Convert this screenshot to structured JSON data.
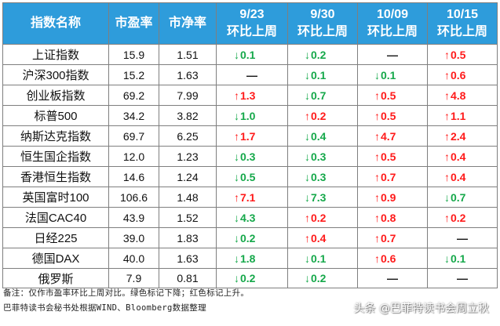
{
  "header": {
    "name": "指数名称",
    "pe": "市盈率",
    "pb": "市净率",
    "periods": [
      {
        "date": "9/23",
        "label": "环比上周"
      },
      {
        "date": "9/30",
        "label": "环比上周"
      },
      {
        "date": "10/09",
        "label": "环比上周"
      },
      {
        "date": "10/15",
        "label": "环比上周"
      }
    ]
  },
  "rows": [
    {
      "name": "上证指数",
      "pe": "15.9",
      "pb": "1.51",
      "changes": [
        {
          "dir": "down",
          "arrow": "↓",
          "value": "0.1"
        },
        {
          "dir": "down",
          "arrow": "↓",
          "value": "0.2"
        },
        {
          "dir": "flat",
          "arrow": "",
          "value": "—"
        },
        {
          "dir": "up",
          "arrow": "↑",
          "value": "0.5"
        }
      ]
    },
    {
      "name": "沪深300指数",
      "pe": "15.2",
      "pb": "1.63",
      "changes": [
        {
          "dir": "flat",
          "arrow": "",
          "value": "—"
        },
        {
          "dir": "down",
          "arrow": "↓",
          "value": "0.1"
        },
        {
          "dir": "down",
          "arrow": "↓",
          "value": "0.1"
        },
        {
          "dir": "up",
          "arrow": "↑",
          "value": "0.6"
        }
      ]
    },
    {
      "name": "创业板指数",
      "pe": "69.2",
      "pb": "7.99",
      "changes": [
        {
          "dir": "up",
          "arrow": "↑",
          "value": "1.3"
        },
        {
          "dir": "down",
          "arrow": "↓",
          "value": "0.7"
        },
        {
          "dir": "up",
          "arrow": "↑",
          "value": "0.5"
        },
        {
          "dir": "up",
          "arrow": "↑",
          "value": "4.8"
        }
      ]
    },
    {
      "name": "标普500",
      "pe": "34.2",
      "pb": "3.82",
      "changes": [
        {
          "dir": "down",
          "arrow": "↓",
          "value": "1.0"
        },
        {
          "dir": "up",
          "arrow": "↑",
          "value": "0.2"
        },
        {
          "dir": "up",
          "arrow": "↑",
          "value": "0.5"
        },
        {
          "dir": "up",
          "arrow": "↑",
          "value": "1.1"
        }
      ]
    },
    {
      "name": "纳斯达克指数",
      "pe": "69.7",
      "pb": "6.25",
      "changes": [
        {
          "dir": "up",
          "arrow": "↑",
          "value": "1.7"
        },
        {
          "dir": "down",
          "arrow": "↓",
          "value": "0.4"
        },
        {
          "dir": "up",
          "arrow": "↑",
          "value": "4.7"
        },
        {
          "dir": "up",
          "arrow": "↑",
          "value": "2.4"
        }
      ]
    },
    {
      "name": "恒生国企指数",
      "pe": "12.0",
      "pb": "1.23",
      "changes": [
        {
          "dir": "down",
          "arrow": "↓",
          "value": "0.3"
        },
        {
          "dir": "down",
          "arrow": "↓",
          "value": "0.3"
        },
        {
          "dir": "up",
          "arrow": "↑",
          "value": "0.5"
        },
        {
          "dir": "up",
          "arrow": "↑",
          "value": "0.4"
        }
      ]
    },
    {
      "name": "香港恒生指数",
      "pe": "14.6",
      "pb": "1.24",
      "changes": [
        {
          "dir": "down",
          "arrow": "↓",
          "value": "0.5"
        },
        {
          "dir": "down",
          "arrow": "↓",
          "value": "0.3"
        },
        {
          "dir": "up",
          "arrow": "↑",
          "value": "0.7"
        },
        {
          "dir": "up",
          "arrow": "↑",
          "value": "0.4"
        }
      ]
    },
    {
      "name": "英国富时100",
      "pe": "106.6",
      "pb": "1.48",
      "changes": [
        {
          "dir": "up",
          "arrow": "↑",
          "value": "7.1"
        },
        {
          "dir": "down",
          "arrow": "↓",
          "value": "7.3"
        },
        {
          "dir": "up",
          "arrow": "↑",
          "value": "0.9"
        },
        {
          "dir": "down",
          "arrow": "↓",
          "value": "0.7"
        }
      ]
    },
    {
      "name": "法国CAC40",
      "pe": "43.9",
      "pb": "1.52",
      "changes": [
        {
          "dir": "down",
          "arrow": "↓",
          "value": "4.3"
        },
        {
          "dir": "up",
          "arrow": "↑",
          "value": "0.2"
        },
        {
          "dir": "up",
          "arrow": "↑",
          "value": "0.8"
        },
        {
          "dir": "up",
          "arrow": "↑",
          "value": "0.2"
        }
      ]
    },
    {
      "name": "日经225",
      "pe": "39.0",
      "pb": "1.83",
      "changes": [
        {
          "dir": "down",
          "arrow": "↓",
          "value": "0.2"
        },
        {
          "dir": "up",
          "arrow": "↑",
          "value": "0.4"
        },
        {
          "dir": "up",
          "arrow": "↑",
          "value": "0.7"
        },
        {
          "dir": "flat",
          "arrow": "",
          "value": "—"
        }
      ]
    },
    {
      "name": "德国DAX",
      "pe": "40.0",
      "pb": "1.63",
      "changes": [
        {
          "dir": "down",
          "arrow": "↓",
          "value": "1.8"
        },
        {
          "dir": "down",
          "arrow": "↓",
          "value": "0.1"
        },
        {
          "dir": "up",
          "arrow": "↑",
          "value": "0.6"
        },
        {
          "dir": "down",
          "arrow": "↓",
          "value": "0.1"
        }
      ]
    },
    {
      "name": "俄罗斯",
      "pe": "7.9",
      "pb": "0.81",
      "changes": [
        {
          "dir": "down",
          "arrow": "↓",
          "value": "0.2"
        },
        {
          "dir": "down",
          "arrow": "↓",
          "value": "0.2"
        },
        {
          "dir": "flat",
          "arrow": "",
          "value": "—"
        },
        {
          "dir": "flat",
          "arrow": "",
          "value": "—"
        }
      ]
    }
  ],
  "notes": {
    "line1": "备注：仅作市盈率环比上周对比。绿色标记下降；红色标记上升。",
    "line2": "巴菲特读书会秘书处根据WIND、Bloomberg数据整理"
  },
  "watermark": "头条 @巴菲特读书会周立秋",
  "colors": {
    "header_bg": "#2e9cdb",
    "up": "#ff1a1a",
    "down": "#15a84a"
  }
}
